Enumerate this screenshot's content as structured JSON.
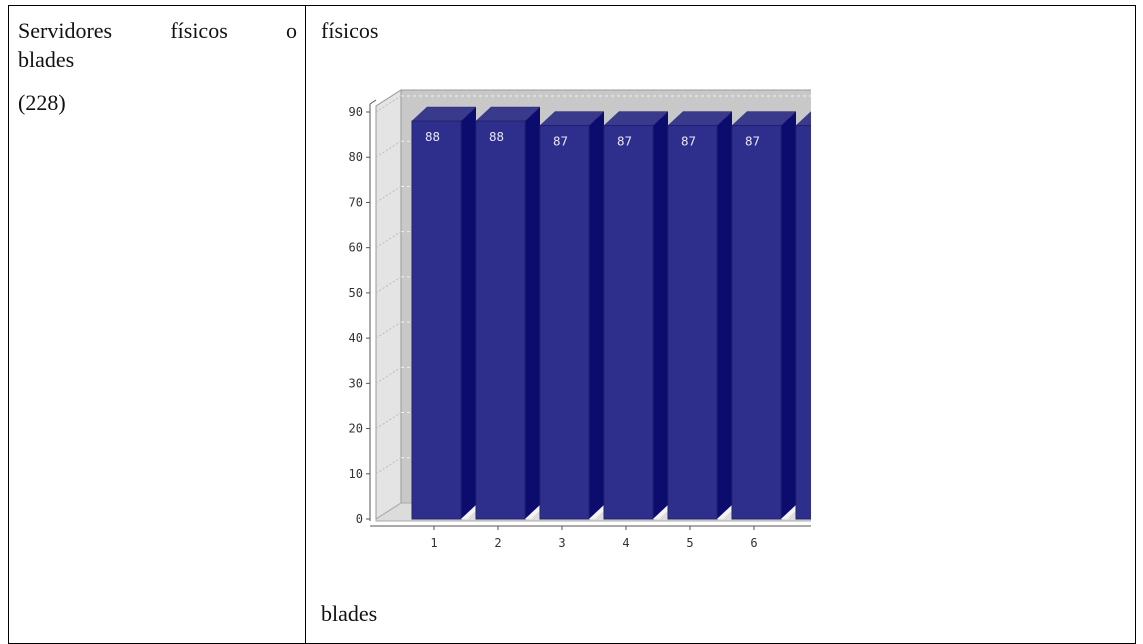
{
  "left_cell": {
    "heading_words": [
      "Servidores",
      "físicos",
      "o"
    ],
    "heading_line2": "blades",
    "count": "(228)"
  },
  "right_cell": {
    "top_label": "físicos",
    "bottom_label": "blades"
  },
  "chart_data": {
    "type": "bar",
    "categories": [
      "1",
      "2",
      "3",
      "4",
      "5",
      "6",
      ""
    ],
    "values": [
      88,
      88,
      87,
      87,
      87,
      87,
      87
    ],
    "data_labels": [
      "88",
      "88",
      "87",
      "87",
      "87",
      "87",
      ""
    ],
    "yticks": [
      0,
      10,
      20,
      30,
      40,
      50,
      60,
      70,
      80,
      90
    ],
    "ylim": [
      0,
      90
    ],
    "title": "",
    "xlabel": "",
    "ylabel": "",
    "grid": true,
    "three_d": true,
    "bar_color": "#2e2e8c",
    "bar_side_color": "#0c0c6e",
    "bar_top_color": "#3a3a8c",
    "background_color": "#c8c8c8"
  }
}
